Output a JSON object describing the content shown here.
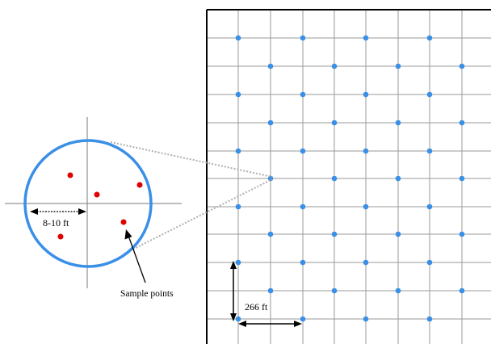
{
  "labels": {
    "spacing_bracket": "8-10 ft",
    "grid_spacing": "266 ft",
    "sample_points": "Sample points"
  },
  "colors": {
    "grid_dot": "#3a8fe6",
    "zoom_circle": "#3a8fe6",
    "sample_dot": "#e00000",
    "grid_line": "#9a9a9a",
    "leader_line": "#b0b0b0"
  }
}
